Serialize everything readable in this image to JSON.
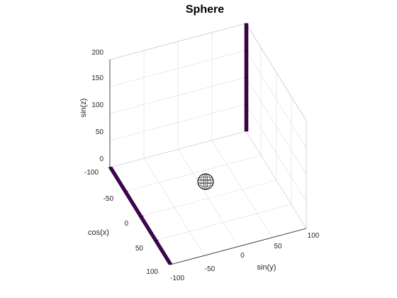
{
  "chart_data": {
    "type": "surface3d",
    "title": "Sphere",
    "xlabel": "cos(x)",
    "ylabel": "sin(y)",
    "zlabel": "sin(z)",
    "xlim": [
      -100,
      100
    ],
    "ylim": [
      -100,
      100
    ],
    "zlim": [
      0,
      200
    ],
    "x_ticks": [
      "-100",
      "-50",
      "0",
      "50",
      "100"
    ],
    "y_ticks": [
      "-100",
      "-50",
      "0",
      "50",
      "100"
    ],
    "z_ticks": [
      "0",
      "50",
      "100",
      "150",
      "200"
    ],
    "grid": true,
    "objects": [
      {
        "name": "sphere",
        "center": [
          0,
          0,
          0
        ],
        "radius": 10,
        "color": "#ffffff",
        "edge_color": "#000000"
      },
      {
        "name": "wall-x",
        "color": "#440154"
      },
      {
        "name": "wall-y",
        "color": "#440154"
      }
    ]
  }
}
